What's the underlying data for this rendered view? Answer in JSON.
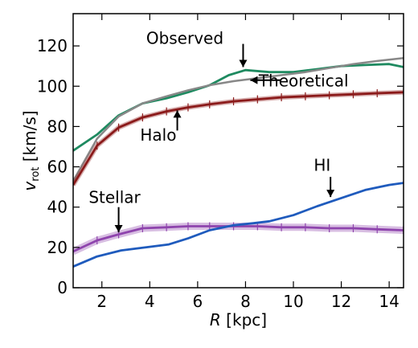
{
  "chart_data": {
    "type": "line",
    "xlabel_var": "R",
    "xlabel_unit": " [kpc]",
    "ylabel_var": "v",
    "ylabel_sub": "rot",
    "ylabel_unit": " [km/s]",
    "xlim": [
      0.8,
      14.6
    ],
    "ylim": [
      0,
      136
    ],
    "xticks": [
      2,
      4,
      6,
      8,
      10,
      12,
      14
    ],
    "yticks": [
      0,
      20,
      40,
      60,
      80,
      100,
      120
    ],
    "grid": false,
    "series": [
      {
        "name": "Observed",
        "color": "#1e8a60",
        "x": [
          0.8,
          1.8,
          2.7,
          3.7,
          4.7,
          5.6,
          6.5,
          7.3,
          8.0,
          9.0,
          10.0,
          11.0,
          12.0,
          13.0,
          14.0,
          14.6
        ],
        "y": [
          68,
          76,
          85.5,
          91.5,
          94,
          97,
          100.5,
          105.5,
          108,
          107,
          107,
          108.5,
          110,
          110.5,
          111,
          109.5
        ]
      },
      {
        "name": "Theoretical",
        "color": "#888888",
        "x": [
          0.8,
          1.8,
          2.7,
          3.7,
          4.7,
          5.6,
          6.5,
          7.5,
          8.5,
          9.5,
          10.5,
          11.5,
          12.5,
          13.5,
          14.6
        ],
        "y": [
          53,
          74,
          85,
          91.5,
          95,
          98,
          100.5,
          102.5,
          104,
          105.5,
          107,
          109,
          111,
          112.5,
          114
        ]
      },
      {
        "name": "Halo",
        "color": "#8b1a1a",
        "x": [
          0.8,
          1.8,
          2.7,
          3.7,
          4.7,
          5.6,
          6.5,
          7.5,
          8.5,
          9.5,
          10.5,
          11.5,
          12.5,
          13.5,
          14.6
        ],
        "y": [
          51,
          70.5,
          79.5,
          84.5,
          87.5,
          89.5,
          91,
          92.5,
          93.5,
          94.5,
          95,
          95.5,
          96,
          96.5,
          97
        ]
      },
      {
        "name": "Stellar",
        "color": "#8e44ad",
        "x": [
          0.8,
          1.8,
          2.7,
          3.7,
          4.7,
          5.6,
          6.5,
          7.5,
          8.5,
          9.5,
          10.5,
          11.5,
          12.5,
          13.5,
          14.6
        ],
        "y": [
          18,
          23.5,
          26.5,
          29.5,
          30,
          30.5,
          30.5,
          30.5,
          30.5,
          30,
          30,
          29.5,
          29.5,
          29,
          28.5
        ]
      },
      {
        "name": "HI",
        "color": "#1f5bbd",
        "x": [
          0.8,
          1.8,
          2.8,
          3.8,
          4.8,
          5.6,
          6.5,
          7.5,
          8.3,
          9.0,
          10.0,
          11.0,
          12.0,
          13.0,
          14.0,
          14.6
        ],
        "y": [
          10.5,
          15.5,
          18.5,
          20,
          21.5,
          24.5,
          28.5,
          31,
          32,
          33,
          36,
          40.5,
          44.5,
          48.5,
          51,
          52
        ]
      }
    ],
    "annotations": [
      {
        "text": "Observed",
        "tx": 3.85,
        "ty": 121,
        "ax": 7.9,
        "ay0": 121,
        "ay1": 109.5,
        "arrow": "down",
        "anchor": "start"
      },
      {
        "text": "Theoretical",
        "tx": 8.55,
        "ty": 100,
        "ax0": 9.5,
        "ax1": 8.2,
        "ay": 103,
        "arrow": "left",
        "anchor": "start"
      },
      {
        "text": "Halo",
        "tx": 3.6,
        "ty": 73,
        "ax": 5.15,
        "ay0": 78,
        "ay1": 88,
        "arrow": "up",
        "anchor": "start"
      },
      {
        "text": "Stellar",
        "tx": 1.45,
        "ty": 42,
        "ax": 2.7,
        "ay0": 40,
        "ay1": 27.5,
        "arrow": "down",
        "anchor": "start"
      },
      {
        "text": "HI",
        "tx": 10.85,
        "ty": 58,
        "ax": 11.55,
        "ay0": 55,
        "ay1": 45,
        "arrow": "down",
        "anchor": "start"
      }
    ]
  }
}
